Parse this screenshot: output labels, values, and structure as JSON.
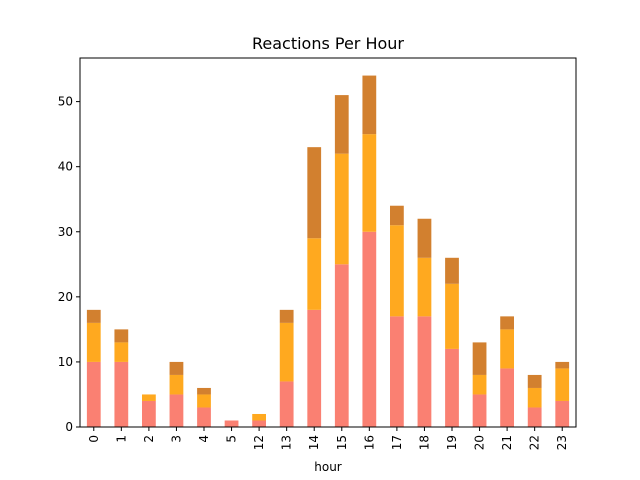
{
  "chart_data": {
    "type": "bar",
    "stacked": true,
    "title": "Reactions Per Hour",
    "xlabel": "hour",
    "ylabel": "",
    "ylim": [
      0,
      56.7
    ],
    "yticks": [
      0,
      10,
      20,
      30,
      40,
      50
    ],
    "grid": false,
    "legend": "none",
    "categories": [
      "0",
      "1",
      "2",
      "3",
      "4",
      "5",
      "12",
      "13",
      "14",
      "15",
      "16",
      "17",
      "18",
      "19",
      "20",
      "21",
      "22",
      "23"
    ],
    "series": [
      {
        "values": [
          10,
          10,
          4,
          5,
          3,
          1,
          1,
          7,
          18,
          25,
          30,
          17,
          17,
          12,
          5,
          9,
          3,
          4
        ],
        "color": "#fa8072"
      },
      {
        "values": [
          6,
          3,
          1,
          3,
          2,
          0,
          1,
          9,
          11,
          17,
          15,
          14,
          9,
          10,
          3,
          6,
          3,
          5
        ],
        "color": "#ffa91f"
      },
      {
        "values": [
          2,
          2,
          0,
          2,
          1,
          0,
          0,
          2,
          14,
          9,
          9,
          3,
          6,
          4,
          5,
          2,
          2,
          1
        ],
        "color": "#d2802f"
      }
    ]
  }
}
